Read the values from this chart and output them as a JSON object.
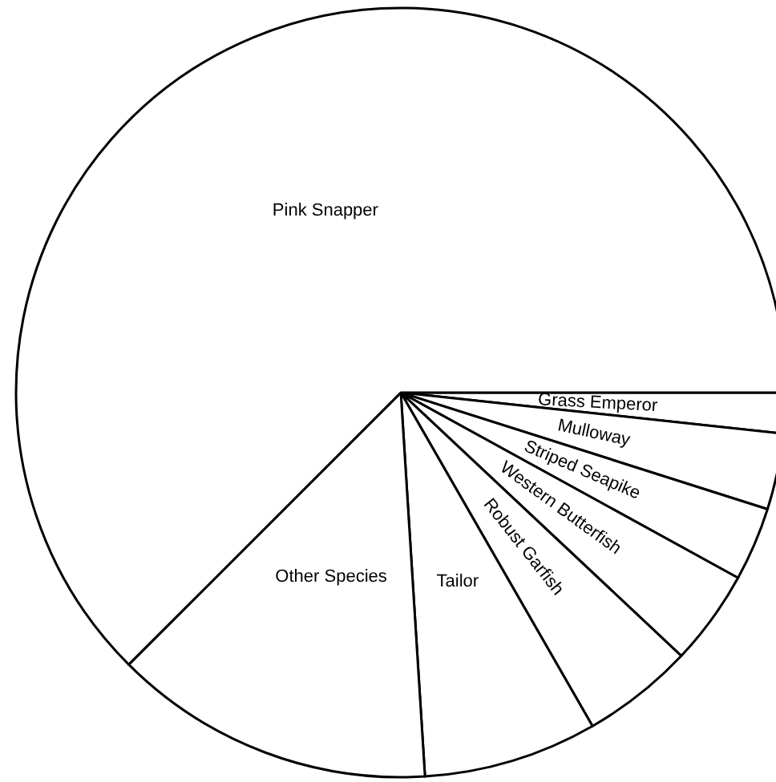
{
  "chart_data": {
    "type": "pie",
    "categories": [
      "Grass Emperor",
      "Mulloway",
      "Striped Seapike",
      "Western Butterfish",
      "Robust Garfish",
      "Tailor",
      "Other Species",
      "Pink Snapper"
    ],
    "values": [
      1.7,
      3.2,
      3.1,
      4.0,
      4.7,
      7.3,
      13.5,
      62.5
    ],
    "colors": [
      "#ffffff",
      "#ffffff",
      "#ffffff",
      "#ffffff",
      "#ffffff",
      "#ffffff",
      "#ffffff",
      "#ffffff"
    ],
    "legend": false
  }
}
